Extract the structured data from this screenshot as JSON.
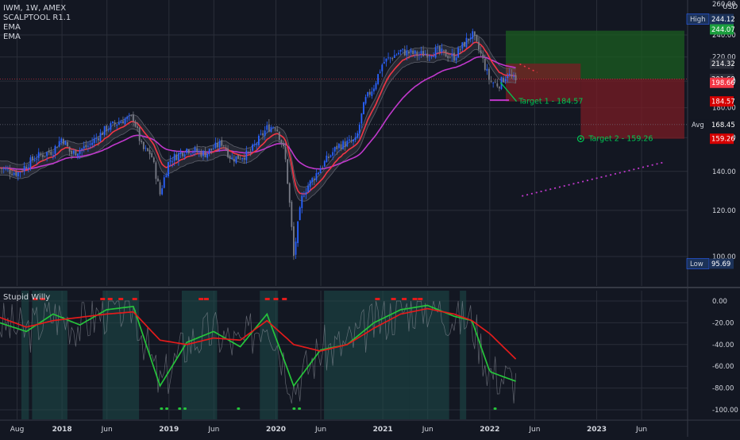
{
  "header": {
    "symbol_line": "IWM, 1W, AMEX",
    "indicators": [
      "SCALPTOOL R1.1",
      "EMA",
      "EMA"
    ]
  },
  "currency": "USD",
  "subpane_title": "Stupid Willy",
  "colors": {
    "background": "#131722",
    "grid": "#2a2e39",
    "up_candle": "#2962ff",
    "down_candle": "#787b86",
    "ema_fast": "#f23645",
    "ema_slow": "#c038cc",
    "profit_zone": "#1b5e20",
    "loss_zone": "#7a1c24",
    "target_line": "#00c853",
    "osc_fast": "#26c43b",
    "osc_slow": "#e31b1b",
    "osc_raw": "#9598a1",
    "teal_band": "#1e4d4a"
  },
  "chart_data": [
    {
      "type": "candlestick",
      "title": "IWM, 1W, AMEX",
      "x_ticks": [
        "Aug",
        "2018",
        "Jun",
        "2019",
        "Jun",
        "2020",
        "Jun",
        "2021",
        "Jun",
        "2022",
        "Jun",
        "2023",
        "Jun"
      ],
      "ylim": [
        95,
        250
      ],
      "y_ticks": [
        100,
        120,
        140,
        160,
        180,
        200,
        220,
        240
      ],
      "y_tick_labels": [
        "100.00",
        "120.00",
        "140.00",
        "160.00",
        "180.00",
        "200.00",
        "220.00",
        "240.00"
      ],
      "price_path": [
        {
          "date": "2017-06",
          "close": 142
        },
        {
          "date": "2017-08",
          "close": 139
        },
        {
          "date": "2017-10",
          "close": 148
        },
        {
          "date": "2017-12",
          "close": 152
        },
        {
          "date": "2018-01",
          "close": 160
        },
        {
          "date": "2018-02",
          "close": 150
        },
        {
          "date": "2018-04",
          "close": 155
        },
        {
          "date": "2018-06",
          "close": 166
        },
        {
          "date": "2018-08",
          "close": 172
        },
        {
          "date": "2018-09",
          "close": 173
        },
        {
          "date": "2018-10",
          "close": 153
        },
        {
          "date": "2018-11",
          "close": 150
        },
        {
          "date": "2018-12",
          "close": 128
        },
        {
          "date": "2019-01",
          "close": 146
        },
        {
          "date": "2019-03",
          "close": 153
        },
        {
          "date": "2019-05",
          "close": 150
        },
        {
          "date": "2019-07",
          "close": 157
        },
        {
          "date": "2019-08",
          "close": 147
        },
        {
          "date": "2019-10",
          "close": 150
        },
        {
          "date": "2019-12",
          "close": 166
        },
        {
          "date": "2020-01",
          "close": 168
        },
        {
          "date": "2020-02",
          "close": 150
        },
        {
          "date": "2020-03",
          "close": 100
        },
        {
          "date": "2020-04",
          "close": 128
        },
        {
          "date": "2020-06",
          "close": 142
        },
        {
          "date": "2020-08",
          "close": 155
        },
        {
          "date": "2020-10",
          "close": 158
        },
        {
          "date": "2020-11",
          "close": 185
        },
        {
          "date": "2020-12",
          "close": 196
        },
        {
          "date": "2021-01",
          "close": 215
        },
        {
          "date": "2021-03",
          "close": 225
        },
        {
          "date": "2021-05",
          "close": 222
        },
        {
          "date": "2021-07",
          "close": 225
        },
        {
          "date": "2021-09",
          "close": 220
        },
        {
          "date": "2021-11",
          "close": 241
        },
        {
          "date": "2021-12",
          "close": 222
        },
        {
          "date": "2022-01",
          "close": 200
        },
        {
          "date": "2022-02",
          "close": 197
        },
        {
          "date": "2022-03",
          "close": 206
        },
        {
          "date": "2022-04",
          "close": 198.66
        }
      ],
      "series": [
        {
          "name": "EMA",
          "role": "fast",
          "color": "#f23645"
        },
        {
          "name": "EMA",
          "role": "slow",
          "color": "#c038cc"
        }
      ],
      "levels": [
        {
          "label": "High",
          "value": 244.12,
          "color": "#1c3259"
        },
        {
          "label": "",
          "value": 244.07,
          "color": "#1b9e3e"
        },
        {
          "label": "",
          "value": 214.32,
          "color": "#2a2e39"
        },
        {
          "label": "",
          "value": 201.69,
          "color": "#2a2e39"
        },
        {
          "label": "",
          "value": 198.66,
          "color": "#f23645"
        },
        {
          "label": "",
          "value": 184.57,
          "color": "#d50000"
        },
        {
          "label": "Avg",
          "value": 168.45,
          "color": "#131722"
        },
        {
          "label": "",
          "value": 159.26,
          "color": "#d50000"
        },
        {
          "label": "Low",
          "value": 95.69,
          "color": "#1c3259"
        }
      ],
      "annotations": [
        {
          "text": "Target 1 - 184.57",
          "value": 184.57
        },
        {
          "text": "Target 2 - 159.26",
          "value": 159.26
        }
      ],
      "zones": [
        {
          "kind": "profit",
          "from": 201.69,
          "to": 244.07
        },
        {
          "kind": "loss",
          "from": 159.26,
          "to": 201.69
        }
      ]
    },
    {
      "type": "line",
      "title": "Stupid Willy",
      "ylim": [
        -100,
        0
      ],
      "y_ticks": [
        0,
        -20,
        -40,
        -60,
        -80,
        -100
      ],
      "y_tick_labels": [
        "0.00",
        "-20.00",
        "-40.00",
        "-60.00",
        "-80.00",
        "-100.00"
      ],
      "series": [
        {
          "role": "fast",
          "color": "#26c43b",
          "points": [
            {
              "date": "2017-06",
              "value": -20
            },
            {
              "date": "2017-09",
              "value": -28
            },
            {
              "date": "2017-12",
              "value": -12
            },
            {
              "date": "2018-03",
              "value": -22
            },
            {
              "date": "2018-06",
              "value": -8
            },
            {
              "date": "2018-09",
              "value": -5
            },
            {
              "date": "2018-12",
              "value": -78
            },
            {
              "date": "2019-03",
              "value": -38
            },
            {
              "date": "2019-06",
              "value": -28
            },
            {
              "date": "2019-09",
              "value": -42
            },
            {
              "date": "2019-12",
              "value": -12
            },
            {
              "date": "2020-03",
              "value": -78
            },
            {
              "date": "2020-06",
              "value": -45
            },
            {
              "date": "2020-09",
              "value": -40
            },
            {
              "date": "2020-12",
              "value": -20
            },
            {
              "date": "2021-03",
              "value": -8
            },
            {
              "date": "2021-06",
              "value": -4
            },
            {
              "date": "2021-09",
              "value": -14
            },
            {
              "date": "2021-11",
              "value": -18
            },
            {
              "date": "2022-01",
              "value": -65
            },
            {
              "date": "2022-04",
              "value": -74
            }
          ]
        },
        {
          "role": "slow",
          "color": "#e31b1b",
          "points": [
            {
              "date": "2017-06",
              "value": -15
            },
            {
              "date": "2017-09",
              "value": -24
            },
            {
              "date": "2017-12",
              "value": -18
            },
            {
              "date": "2018-03",
              "value": -15
            },
            {
              "date": "2018-06",
              "value": -12
            },
            {
              "date": "2018-09",
              "value": -10
            },
            {
              "date": "2018-12",
              "value": -36
            },
            {
              "date": "2019-03",
              "value": -40
            },
            {
              "date": "2019-06",
              "value": -34
            },
            {
              "date": "2019-09",
              "value": -36
            },
            {
              "date": "2019-12",
              "value": -18
            },
            {
              "date": "2020-03",
              "value": -40
            },
            {
              "date": "2020-06",
              "value": -46
            },
            {
              "date": "2020-09",
              "value": -40
            },
            {
              "date": "2020-12",
              "value": -25
            },
            {
              "date": "2021-03",
              "value": -12
            },
            {
              "date": "2021-06",
              "value": -7
            },
            {
              "date": "2021-09",
              "value": -12
            },
            {
              "date": "2021-11",
              "value": -18
            },
            {
              "date": "2022-01",
              "value": -30
            },
            {
              "date": "2022-04",
              "value": -54
            }
          ]
        }
      ]
    }
  ]
}
